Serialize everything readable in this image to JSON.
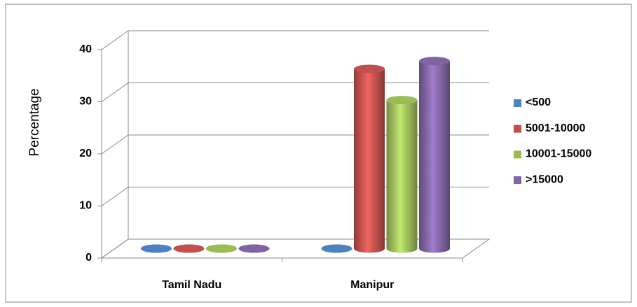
{
  "chart_data": {
    "type": "bar3d",
    "y_label": "Percentage",
    "categories": [
      "Tamil Nadu",
      "Manipur"
    ],
    "series": [
      {
        "name": "<500",
        "color": "#4f81bd",
        "values": [
          0,
          0
        ]
      },
      {
        "name": "5001-10000",
        "color": "#c0504d",
        "values": [
          0,
          34.5
        ]
      },
      {
        "name": "10001-15000",
        "color": "#9bbb59",
        "values": [
          0,
          28.5
        ]
      },
      {
        "name": ">15000",
        "color": "#8064a2",
        "values": [
          0,
          36
        ]
      }
    ],
    "ylim": [
      0,
      40
    ],
    "yticks": [
      0,
      10,
      20,
      30,
      40
    ],
    "grid": true,
    "legend": "right"
  }
}
